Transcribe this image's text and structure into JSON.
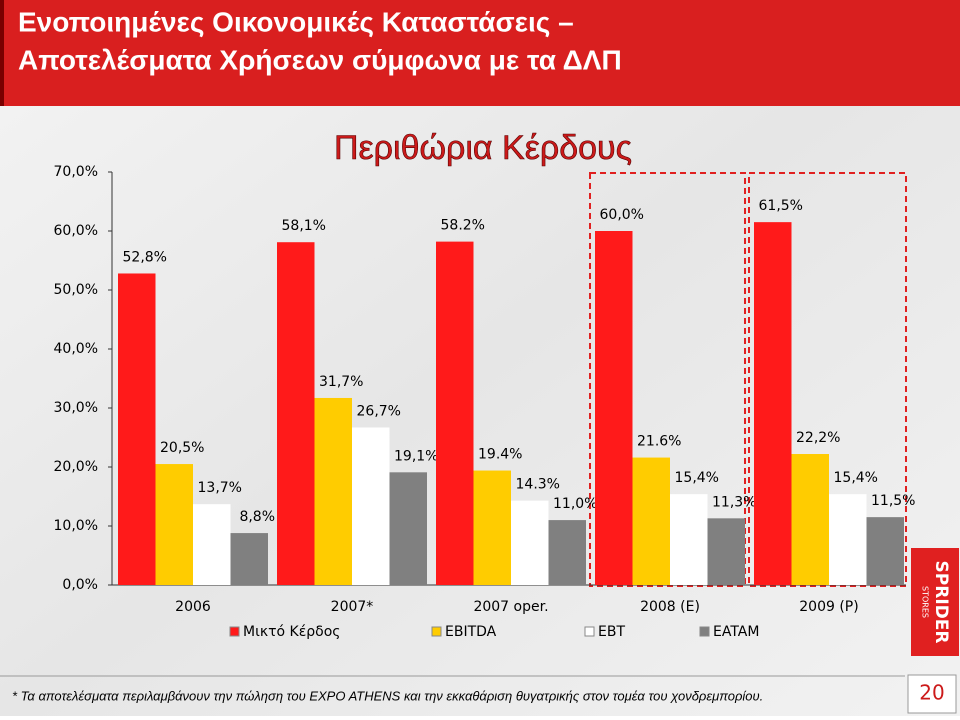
{
  "header": {
    "title_lines": [
      "Ενοποιημένες Οικονομικές Καταστάσεις –",
      "Αποτελέσματα Χρήσεων σύμφωνα με τα ΔΛΠ"
    ]
  },
  "chart_data": {
    "type": "bar",
    "title": "Περιθώρια Κέρδους",
    "categories": [
      "2006",
      "2007*",
      "2007 oper.",
      "2008 (E)",
      "2009 (P)"
    ],
    "series": [
      {
        "name": "Μικτό Κέρδος",
        "color": "#ff1a1a",
        "values": [
          52.8,
          58.1,
          58.2,
          60.0,
          61.5
        ],
        "value_labels": [
          "52,8%",
          "58,1%",
          "58.2%",
          "60,0%",
          "61,5%"
        ]
      },
      {
        "name": "EBITDA",
        "color": "#ffcc00",
        "values": [
          20.5,
          31.7,
          19.4,
          21.6,
          22.2
        ],
        "value_labels": [
          "20,5%",
          "31,7%",
          "19.4%",
          "21.6%",
          "22,2%"
        ]
      },
      {
        "name": "EBT",
        "color": "#ffffff",
        "values": [
          13.7,
          26.7,
          14.3,
          15.4,
          15.4
        ],
        "value_labels": [
          "13,7%",
          "26,7%",
          "14.3%",
          "15,4%",
          "15,4%"
        ]
      },
      {
        "name": "EATAM",
        "color": "#808080",
        "values": [
          8.8,
          19.1,
          11.0,
          11.3,
          11.5
        ],
        "value_labels": [
          "8,8%",
          "19,1%",
          "11,0%",
          "11,3%",
          "11,5%"
        ]
      }
    ],
    "ylim": [
      0,
      70
    ],
    "yticks": [
      {
        "value": 0,
        "label": "0,0%"
      },
      {
        "value": 10,
        "label": "10,0%"
      },
      {
        "value": 20,
        "label": "20,0%"
      },
      {
        "value": 30,
        "label": "30,0%"
      },
      {
        "value": 40,
        "label": "40,0%"
      },
      {
        "value": 50,
        "label": "50,0%"
      },
      {
        "value": 60,
        "label": "60,0%"
      },
      {
        "value": 70,
        "label": "70,0%"
      }
    ],
    "grid": false,
    "legend": "bottom"
  },
  "footnote": "* Τα αποτελέσματα περιλαμβάνουν την πώληση του EXPO ATHENS και την εκκαθάριση θυγατρικής στον τομέα του χονδρεμπορίου.",
  "page_number": "20",
  "logo": {
    "text": "SPRIDER",
    "subtext": "STORES"
  }
}
